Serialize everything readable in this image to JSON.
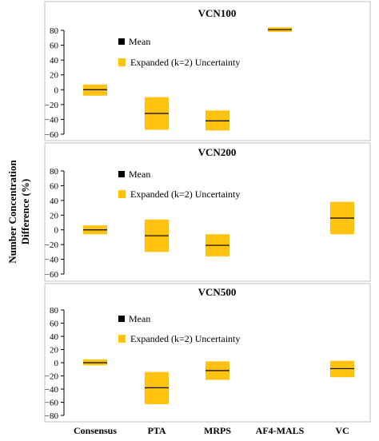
{
  "chart_data": {
    "type": "box",
    "ylabel_lines": [
      "Number Concentration",
      "Difference (%)"
    ],
    "categories": [
      "Consensus",
      "PTA",
      "MRPS",
      "AF4-MALS",
      "VC"
    ],
    "colors": {
      "box": "#FFC20E",
      "mean": "#000000",
      "panel_border": "#bfbfbf"
    },
    "legend": {
      "mean": "Mean",
      "uncertainty": "Expanded (k=2) Uncertainty"
    },
    "panels": [
      {
        "title": "VCN100",
        "yticks": [
          "80",
          "60",
          "40",
          "20",
          "0",
          "−20",
          "−40",
          "−60"
        ],
        "ylim": [
          -60,
          80
        ],
        "boxes": [
          {
            "category": "Consensus",
            "mean": 0,
            "low": -8,
            "high": 7
          },
          {
            "category": "PTA",
            "mean": -32,
            "low": -54,
            "high": -10
          },
          {
            "category": "MRPS",
            "mean": -42,
            "low": -55,
            "high": -28
          },
          {
            "category": "AF4-MALS",
            "mean": 81,
            "low": 78,
            "high": 84
          }
        ]
      },
      {
        "title": "VCN200",
        "yticks": [
          "80",
          "60",
          "40",
          "20",
          "0",
          "−20",
          "−40",
          "−60"
        ],
        "ylim": [
          -60,
          80
        ],
        "boxes": [
          {
            "category": "Consensus",
            "mean": 0,
            "low": -6,
            "high": 6
          },
          {
            "category": "PTA",
            "mean": -8,
            "low": -30,
            "high": 14
          },
          {
            "category": "MRPS",
            "mean": -21,
            "low": -36,
            "high": -6
          },
          {
            "category": "VC",
            "mean": 16,
            "low": -6,
            "high": 38
          }
        ]
      },
      {
        "title": "VCN500",
        "yticks": [
          "80",
          "60",
          "40",
          "20",
          "0",
          "−20",
          "−40",
          "−60",
          "−80"
        ],
        "ylim": [
          -80,
          80
        ],
        "boxes": [
          {
            "category": "Consensus",
            "mean": 0,
            "low": -4,
            "high": 5
          },
          {
            "category": "PTA",
            "mean": -38,
            "low": -63,
            "high": -14
          },
          {
            "category": "MRPS",
            "mean": -12,
            "low": -26,
            "high": 2
          },
          {
            "category": "VC",
            "mean": -9,
            "low": -22,
            "high": 3
          }
        ]
      }
    ]
  }
}
